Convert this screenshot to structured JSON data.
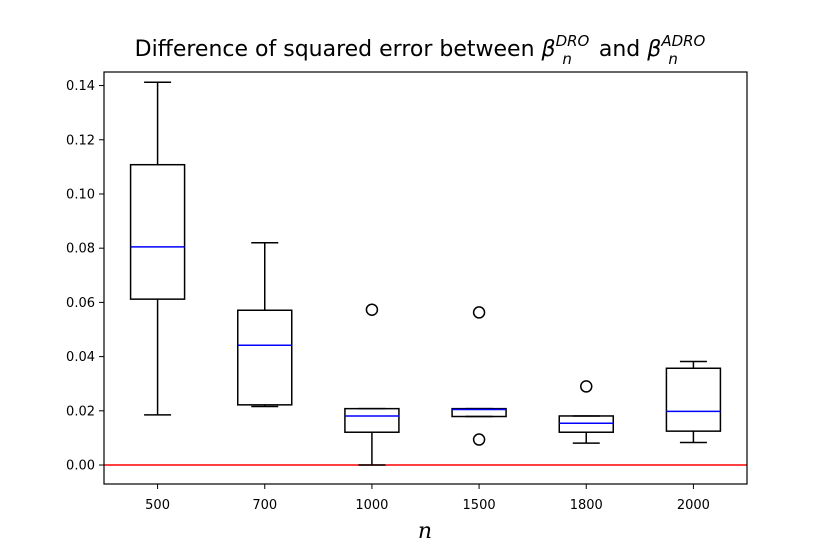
{
  "chart_data": {
    "type": "box",
    "title": {
      "prefix": "Difference of squared error between ",
      "beta1": "β",
      "beta1_sub": "n",
      "beta1_sup": "DRO",
      "middle": " and ",
      "beta2": "β",
      "beta2_sub": "n",
      "beta2_sup": "ADRO"
    },
    "xlabel": "n",
    "ylabel": "",
    "ylim": [
      -0.007,
      0.145
    ],
    "yticks": [
      "0.00",
      "0.02",
      "0.04",
      "0.06",
      "0.08",
      "0.10",
      "0.12",
      "0.14"
    ],
    "categories": [
      "500",
      "700",
      "1000",
      "1500",
      "1800",
      "2000"
    ],
    "boxes": [
      {
        "category": "500",
        "whisker_low": 0.0185,
        "q1": 0.0612,
        "median": 0.0805,
        "q3": 0.1108,
        "whisker_high": 0.1412,
        "outliers": []
      },
      {
        "category": "700",
        "whisker_low": 0.0216,
        "q1": 0.0222,
        "median": 0.0442,
        "q3": 0.0571,
        "whisker_high": 0.082,
        "outliers": []
      },
      {
        "category": "1000",
        "whisker_low": 0.0,
        "q1": 0.0121,
        "median": 0.0181,
        "q3": 0.0208,
        "whisker_high": 0.0208,
        "outliers": [
          0.0573
        ]
      },
      {
        "category": "1500",
        "whisker_low": 0.0179,
        "q1": 0.0179,
        "median": 0.0205,
        "q3": 0.0208,
        "whisker_high": 0.0208,
        "outliers": [
          0.0563,
          0.0094
        ]
      },
      {
        "category": "1800",
        "whisker_low": 0.0081,
        "q1": 0.0121,
        "median": 0.0154,
        "q3": 0.0181,
        "whisker_high": 0.0181,
        "outliers": [
          0.029
        ]
      },
      {
        "category": "2000",
        "whisker_low": 0.0083,
        "q1": 0.0125,
        "median": 0.0198,
        "q3": 0.0357,
        "whisker_high": 0.0382,
        "outliers": []
      }
    ],
    "reference_line": {
      "y": 0.0,
      "color": "#ff0000"
    },
    "colors": {
      "box": "#000000",
      "median": "#0000ff",
      "axes": "#000000"
    },
    "grid": false,
    "legend": "none"
  }
}
